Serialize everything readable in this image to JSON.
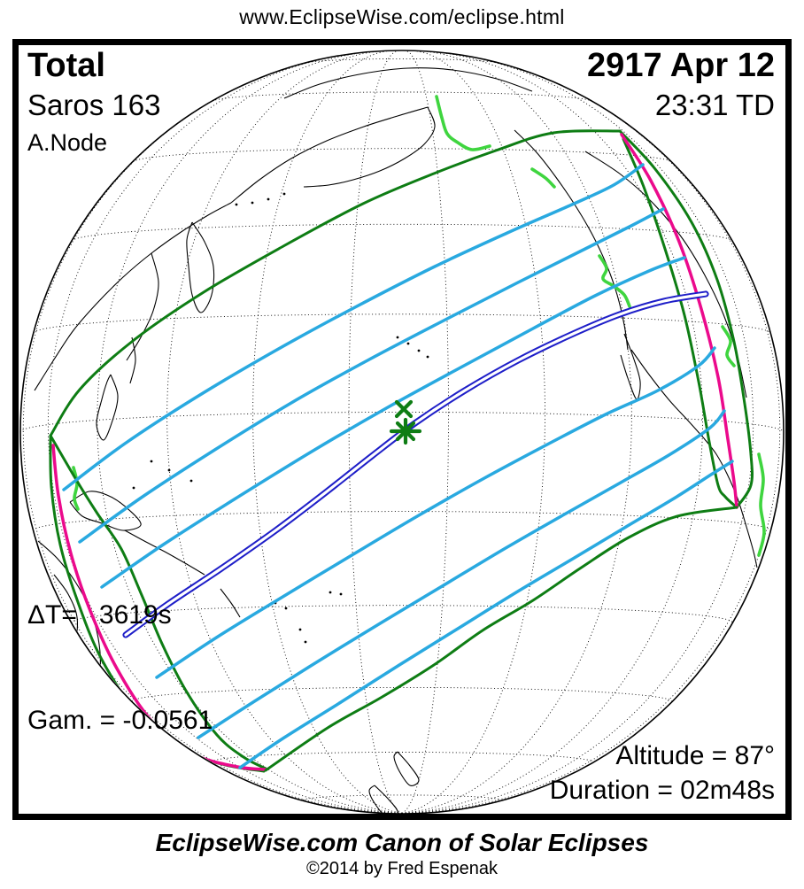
{
  "page": {
    "url_header": "www.EclipseWise.com/eclipse.html"
  },
  "panel": {
    "top_left": {
      "type": "Total",
      "saros": "Saros 163",
      "node": "A.Node"
    },
    "top_right": {
      "date": "2917 Apr 12",
      "time": "23:31 TD"
    },
    "bottom_left": {
      "delta_t": "ΔT=   3619s",
      "gamma": "Gam. = -0.0561"
    },
    "bottom_right": {
      "altitude": "Altitude = 87°",
      "duration": "Duration = 02m48s"
    }
  },
  "footer": {
    "title": "EclipseWise.com Canon of Solar Eclipses",
    "copyright": "©2014 by Fred Espenak"
  },
  "colors": {
    "penumbral_limit_green": "#0E7D14",
    "coast_highlight_green": "#3FD53F",
    "magnitude_line_cyan": "#29A9E0",
    "central_path_blue": "#1E1EC8",
    "sunrise_sunset_magenta": "#EB0A8C",
    "marker_green": "#0E7D14",
    "coastline_black": "#000000",
    "graticule_black": "#000000",
    "background_white": "#FFFFFF"
  }
}
